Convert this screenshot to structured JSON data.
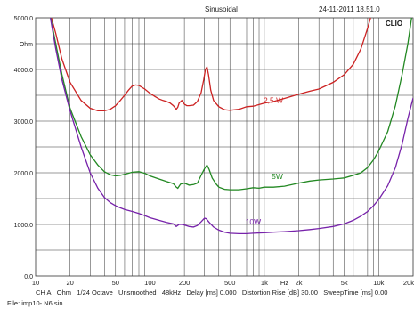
{
  "header": {
    "title": "Sinusoidal",
    "datetime": "24-11-2011 18.51.0",
    "brand": "CLIO"
  },
  "footer": {
    "line1": [
      "CH A",
      "Ohm",
      "1/24 Octave",
      "Unsmoothed",
      "48kHz",
      "Delay [ms] 0.000",
      "Distortion Rise [dB] 30.00",
      "SweepTime [ms] 0.00"
    ],
    "file": "File: imp10- N6.sin"
  },
  "chart_data": {
    "type": "line",
    "title": "Sinusoidal",
    "xscale": "log",
    "xlim": [
      10,
      20000
    ],
    "ylim": [
      0,
      5000
    ],
    "x_tick_labels": [
      {
        "v": 10,
        "t": "10"
      },
      {
        "v": 20,
        "t": "20"
      },
      {
        "v": 50,
        "t": "50"
      },
      {
        "v": 100,
        "t": "100"
      },
      {
        "v": 200,
        "t": "200"
      },
      {
        "v": 500,
        "t": "500"
      },
      {
        "v": 1000,
        "t": "1k"
      },
      {
        "v": 1500,
        "t": "Hz"
      },
      {
        "v": 2000,
        "t": "2k"
      },
      {
        "v": 5000,
        "t": "5k"
      },
      {
        "v": 10000,
        "t": "10k"
      },
      {
        "v": 20000,
        "t": "20k"
      }
    ],
    "y_tick_labels": [
      {
        "v": 5000,
        "t": "5000.0"
      },
      {
        "v": 4500,
        "t": "Ohm"
      },
      {
        "v": 4000,
        "t": "4000.0"
      },
      {
        "v": 3000,
        "t": "3000.0"
      },
      {
        "v": 2000,
        "t": "2000.0"
      },
      {
        "v": 1000,
        "t": "1000.0"
      },
      {
        "v": 0,
        "t": "0.0"
      }
    ],
    "grid": true,
    "series": [
      {
        "name": "2,5 W",
        "color": "#cc2222",
        "label_at": [
          1200,
          3350
        ],
        "points": [
          [
            13,
            5200
          ],
          [
            15,
            4700
          ],
          [
            17,
            4200
          ],
          [
            20,
            3750
          ],
          [
            25,
            3400
          ],
          [
            30,
            3250
          ],
          [
            35,
            3200
          ],
          [
            40,
            3200
          ],
          [
            45,
            3230
          ],
          [
            50,
            3300
          ],
          [
            55,
            3400
          ],
          [
            60,
            3500
          ],
          [
            65,
            3600
          ],
          [
            70,
            3680
          ],
          [
            75,
            3700
          ],
          [
            80,
            3690
          ],
          [
            90,
            3620
          ],
          [
            100,
            3540
          ],
          [
            110,
            3480
          ],
          [
            120,
            3430
          ],
          [
            130,
            3400
          ],
          [
            140,
            3380
          ],
          [
            150,
            3350
          ],
          [
            160,
            3300
          ],
          [
            170,
            3230
          ],
          [
            175,
            3270
          ],
          [
            180,
            3350
          ],
          [
            190,
            3400
          ],
          [
            200,
            3330
          ],
          [
            210,
            3300
          ],
          [
            220,
            3300
          ],
          [
            240,
            3310
          ],
          [
            260,
            3380
          ],
          [
            280,
            3550
          ],
          [
            295,
            3800
          ],
          [
            305,
            4000
          ],
          [
            315,
            4050
          ],
          [
            325,
            3900
          ],
          [
            340,
            3600
          ],
          [
            360,
            3400
          ],
          [
            400,
            3280
          ],
          [
            450,
            3220
          ],
          [
            500,
            3210
          ],
          [
            600,
            3230
          ],
          [
            700,
            3280
          ],
          [
            800,
            3290
          ],
          [
            900,
            3320
          ],
          [
            1000,
            3350
          ],
          [
            1200,
            3380
          ],
          [
            1500,
            3440
          ],
          [
            2000,
            3520
          ],
          [
            2500,
            3580
          ],
          [
            3000,
            3620
          ],
          [
            4000,
            3750
          ],
          [
            5000,
            3900
          ],
          [
            6000,
            4100
          ],
          [
            7000,
            4400
          ],
          [
            8000,
            4800
          ],
          [
            9000,
            5200
          ]
        ]
      },
      {
        "name": "5W",
        "color": "#228822",
        "label_at": [
          1300,
          1880
        ],
        "points": [
          [
            13,
            5200
          ],
          [
            15,
            4500
          ],
          [
            17,
            3900
          ],
          [
            20,
            3250
          ],
          [
            25,
            2700
          ],
          [
            30,
            2350
          ],
          [
            35,
            2150
          ],
          [
            40,
            2020
          ],
          [
            45,
            1960
          ],
          [
            50,
            1940
          ],
          [
            55,
            1950
          ],
          [
            60,
            1970
          ],
          [
            70,
            2010
          ],
          [
            80,
            2020
          ],
          [
            90,
            1990
          ],
          [
            100,
            1940
          ],
          [
            120,
            1880
          ],
          [
            140,
            1830
          ],
          [
            160,
            1790
          ],
          [
            170,
            1720
          ],
          [
            175,
            1700
          ],
          [
            185,
            1780
          ],
          [
            200,
            1800
          ],
          [
            220,
            1760
          ],
          [
            240,
            1770
          ],
          [
            260,
            1800
          ],
          [
            280,
            1950
          ],
          [
            300,
            2080
          ],
          [
            315,
            2150
          ],
          [
            330,
            2060
          ],
          [
            350,
            1900
          ],
          [
            380,
            1780
          ],
          [
            400,
            1720
          ],
          [
            450,
            1680
          ],
          [
            500,
            1670
          ],
          [
            600,
            1670
          ],
          [
            700,
            1690
          ],
          [
            800,
            1710
          ],
          [
            900,
            1700
          ],
          [
            1000,
            1720
          ],
          [
            1200,
            1720
          ],
          [
            1500,
            1740
          ],
          [
            2000,
            1800
          ],
          [
            2500,
            1840
          ],
          [
            3000,
            1860
          ],
          [
            4000,
            1880
          ],
          [
            5000,
            1900
          ],
          [
            6000,
            1950
          ],
          [
            7000,
            2000
          ],
          [
            8000,
            2100
          ],
          [
            9000,
            2250
          ],
          [
            10000,
            2420
          ],
          [
            12000,
            2800
          ],
          [
            14000,
            3300
          ],
          [
            16000,
            3900
          ],
          [
            18000,
            4500
          ],
          [
            20000,
            5200
          ]
        ]
      },
      {
        "name": "10W",
        "color": "#7722aa",
        "label_at": [
          800,
          1000
        ],
        "points": [
          [
            13,
            5200
          ],
          [
            15,
            4400
          ],
          [
            17,
            3800
          ],
          [
            20,
            3200
          ],
          [
            25,
            2500
          ],
          [
            30,
            2000
          ],
          [
            35,
            1700
          ],
          [
            40,
            1520
          ],
          [
            45,
            1420
          ],
          [
            50,
            1360
          ],
          [
            55,
            1320
          ],
          [
            60,
            1290
          ],
          [
            70,
            1250
          ],
          [
            80,
            1210
          ],
          [
            90,
            1170
          ],
          [
            100,
            1130
          ],
          [
            120,
            1080
          ],
          [
            140,
            1040
          ],
          [
            160,
            1010
          ],
          [
            170,
            960
          ],
          [
            180,
            1000
          ],
          [
            190,
            1000
          ],
          [
            200,
            990
          ],
          [
            220,
            960
          ],
          [
            240,
            950
          ],
          [
            260,
            980
          ],
          [
            280,
            1050
          ],
          [
            300,
            1120
          ],
          [
            310,
            1110
          ],
          [
            330,
            1040
          ],
          [
            360,
            950
          ],
          [
            400,
            890
          ],
          [
            450,
            850
          ],
          [
            500,
            830
          ],
          [
            600,
            820
          ],
          [
            700,
            820
          ],
          [
            800,
            830
          ],
          [
            1000,
            840
          ],
          [
            1200,
            850
          ],
          [
            1500,
            860
          ],
          [
            2000,
            880
          ],
          [
            2500,
            900
          ],
          [
            3000,
            920
          ],
          [
            4000,
            960
          ],
          [
            5000,
            1010
          ],
          [
            6000,
            1080
          ],
          [
            7000,
            1160
          ],
          [
            8000,
            1250
          ],
          [
            9000,
            1360
          ],
          [
            10000,
            1480
          ],
          [
            12000,
            1750
          ],
          [
            14000,
            2100
          ],
          [
            16000,
            2550
          ],
          [
            18000,
            3050
          ],
          [
            20000,
            3450
          ]
        ]
      }
    ]
  }
}
